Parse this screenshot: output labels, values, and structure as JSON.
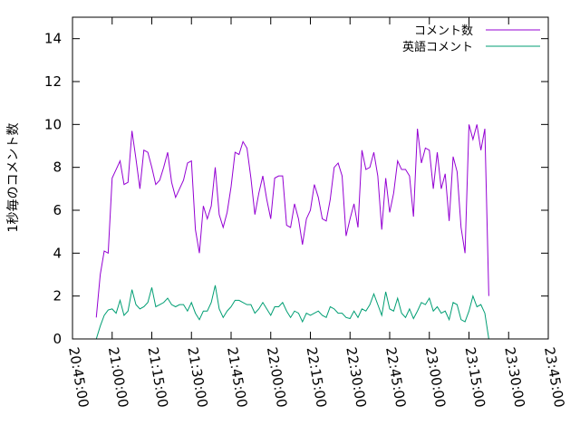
{
  "chart_data": {
    "type": "line",
    "title": "",
    "xlabel": "",
    "ylabel": "1秒毎のコメント数",
    "ylim": [
      0,
      15
    ],
    "yticks": [
      0,
      2,
      4,
      6,
      8,
      10,
      12,
      14
    ],
    "xlim": [
      "20:45:00",
      "23:45:00"
    ],
    "xticks": [
      "20:45:00",
      "21:00:00",
      "21:15:00",
      "21:30:00",
      "21:45:00",
      "22:00:00",
      "22:15:00",
      "22:30:00",
      "22:45:00",
      "23:00:00",
      "23:15:00",
      "23:30:00",
      "23:45:00"
    ],
    "grid": false,
    "legend_position": "top-right",
    "series": [
      {
        "name": "コメント数",
        "color": "#9400d3",
        "x_start": "20:54:00",
        "x_step_seconds": 90,
        "values": [
          1.0,
          3.0,
          4.1,
          4.0,
          7.5,
          7.9,
          8.3,
          7.2,
          7.3,
          9.7,
          8.4,
          7.0,
          8.8,
          8.7,
          8.0,
          7.2,
          7.4,
          8.0,
          8.7,
          7.3,
          6.6,
          7.0,
          7.4,
          8.2,
          8.3,
          5.1,
          4.0,
          6.2,
          5.6,
          6.2,
          8.0,
          5.8,
          5.2,
          5.9,
          7.1,
          8.7,
          8.6,
          9.2,
          8.9,
          7.5,
          5.8,
          6.8,
          7.6,
          6.5,
          5.6,
          7.5,
          7.6,
          7.6,
          5.3,
          5.2,
          6.3,
          5.6,
          4.4,
          5.6,
          6.0,
          7.2,
          6.6,
          5.6,
          5.5,
          6.5,
          8.0,
          8.2,
          7.6,
          4.8,
          5.6,
          6.3,
          5.2,
          8.8,
          7.9,
          8.0,
          8.7,
          7.6,
          5.1,
          7.5,
          5.9,
          6.8,
          8.3,
          7.9,
          7.9,
          7.6,
          5.7,
          9.8,
          8.2,
          8.9,
          8.8,
          7.0,
          8.7,
          7.0,
          7.7,
          5.5,
          8.5,
          7.8,
          5.2,
          4.0,
          10.0,
          9.3,
          10.0,
          8.8,
          9.8,
          2.0
        ]
      },
      {
        "name": "英語コメント",
        "color": "#009e73",
        "x_start": "20:54:00",
        "x_step_seconds": 90,
        "values": [
          0.0,
          0.6,
          1.1,
          1.35,
          1.4,
          1.2,
          1.8,
          1.1,
          1.3,
          2.3,
          1.6,
          1.4,
          1.5,
          1.7,
          2.4,
          1.5,
          1.6,
          1.7,
          1.9,
          1.6,
          1.5,
          1.6,
          1.6,
          1.3,
          1.7,
          1.2,
          0.9,
          1.3,
          1.3,
          1.7,
          2.5,
          1.4,
          1.0,
          1.3,
          1.5,
          1.8,
          1.8,
          1.7,
          1.6,
          1.6,
          1.2,
          1.4,
          1.7,
          1.4,
          1.1,
          1.5,
          1.5,
          1.7,
          1.3,
          1.0,
          1.3,
          1.2,
          0.8,
          1.2,
          1.1,
          1.2,
          1.3,
          1.1,
          1.0,
          1.5,
          1.4,
          1.2,
          1.2,
          1.0,
          0.95,
          1.3,
          1.0,
          1.4,
          1.3,
          1.6,
          2.1,
          1.6,
          1.1,
          2.2,
          1.4,
          1.3,
          1.9,
          1.2,
          1.0,
          1.4,
          0.95,
          1.3,
          1.7,
          1.6,
          1.9,
          1.3,
          1.5,
          1.2,
          1.3,
          0.9,
          1.7,
          1.6,
          0.9,
          0.8,
          1.3,
          2.0,
          1.5,
          1.6,
          1.2,
          0.0
        ]
      }
    ]
  }
}
